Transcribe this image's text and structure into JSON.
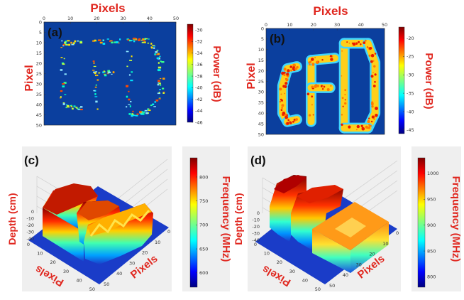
{
  "colors": {
    "label_red": "#e0261e",
    "map_background": "#0b3f9e",
    "panel_grey": "#efefef"
  },
  "colormap": "jet",
  "chart_data": [
    {
      "panel_label": "(a)",
      "type": "heatmap",
      "content": "letters C F D as scattered high-power speckles",
      "xlabel": "Pixels",
      "ylabel": "Pixel",
      "x_ticks": [
        "0",
        "10",
        "20",
        "30",
        "40",
        "50"
      ],
      "y_ticks": [
        "0",
        "5",
        "10",
        "15",
        "20",
        "25",
        "30",
        "35",
        "40",
        "45",
        "50"
      ],
      "xlim": [
        0,
        50
      ],
      "ylim": [
        0,
        50
      ],
      "colorbar": {
        "label": "Power (dB)",
        "range": [
          -46,
          -29
        ],
        "ticks": [
          "-30",
          "-32",
          "-34",
          "-36",
          "-38",
          "-40",
          "-42",
          "-44",
          "-46"
        ]
      }
    },
    {
      "panel_label": "(b)",
      "type": "heatmap",
      "content": "letters C F D filled with high-power regions",
      "xlabel": "Pixels",
      "ylabel": "Pixel",
      "x_ticks": [
        "0",
        "10",
        "20",
        "30",
        "40",
        "50"
      ],
      "y_ticks": [
        "0",
        "5",
        "10",
        "15",
        "20",
        "25",
        "30",
        "35",
        "40",
        "45",
        "50"
      ],
      "xlim": [
        0,
        50
      ],
      "ylim": [
        0,
        50
      ],
      "colorbar": {
        "label": "Power (dB)",
        "range": [
          -46,
          -17
        ],
        "ticks": [
          "-20",
          "-25",
          "-30",
          "-35",
          "-40",
          "-45"
        ]
      }
    },
    {
      "panel_label": "(c)",
      "type": "surface3d",
      "zlabel": "Depth (cm)",
      "xlabel": "Pixels",
      "ylabel": "Pixels",
      "x_ticks": [
        "0",
        "10",
        "20",
        "30",
        "40",
        "50"
      ],
      "y_ticks": [
        "0",
        "10",
        "20",
        "30",
        "40",
        "50"
      ],
      "z_ticks": [
        "0",
        "-10",
        "-20",
        "-30",
        "-40"
      ],
      "colorbar": {
        "label": "Frequency (MHz)",
        "range": [
          570,
          840
        ],
        "ticks": [
          "800",
          "750",
          "700",
          "650",
          "600"
        ]
      }
    },
    {
      "panel_label": "(d)",
      "type": "surface3d",
      "zlabel": "Depth (cm)",
      "xlabel": "Pixels",
      "ylabel": "Pixels",
      "x_ticks": [
        "0",
        "10",
        "20",
        "30",
        "40",
        "50"
      ],
      "y_ticks": [
        "0",
        "10",
        "20",
        "30",
        "40",
        "50"
      ],
      "z_ticks": [
        "0",
        "-10",
        "-20",
        "-30",
        "-40"
      ],
      "colorbar": {
        "label": "Frequency (MHz)",
        "range": [
          780,
          1030
        ],
        "ticks": [
          "1000",
          "950",
          "900",
          "850",
          "800"
        ]
      }
    }
  ]
}
